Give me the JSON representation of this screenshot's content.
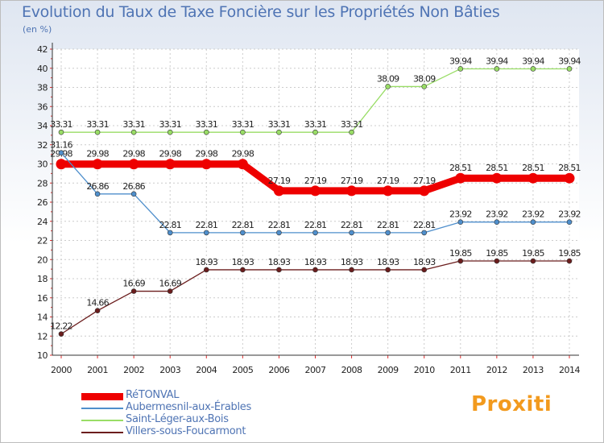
{
  "page": {
    "unit_label": "(en %)",
    "brand": "Proxiti"
  },
  "chart_data": {
    "type": "line",
    "title": "Evolution du Taux de Taxe Foncière sur les Propriétés Non Bâties",
    "ylabel": "(en %)",
    "xlabel": "",
    "ylim": [
      10,
      42
    ],
    "y_ticks": [
      10,
      12,
      14,
      16,
      18,
      20,
      22,
      24,
      26,
      28,
      30,
      32,
      34,
      36,
      38,
      40,
      42
    ],
    "categories": [
      "2000",
      "2001",
      "2002",
      "2003",
      "2004",
      "2005",
      "2006",
      "2007",
      "2008",
      "2009",
      "2010",
      "2011",
      "2012",
      "2013",
      "2014"
    ],
    "grid": true,
    "legend_position": "bottom-left",
    "series": [
      {
        "name": "RéTONVAL",
        "color": "#ee0000",
        "values": [
          29.98,
          29.98,
          29.98,
          29.98,
          29.98,
          29.98,
          27.19,
          27.19,
          27.19,
          27.19,
          27.19,
          28.51,
          28.51,
          28.51,
          28.51
        ],
        "labels": [
          "29.98",
          "29.98",
          "29.98",
          "29.98",
          "29.98",
          "29.98",
          "27.19",
          "27.19",
          "27.19",
          "27.19",
          "27.19",
          "28.51",
          "28.51",
          "28.51",
          "28.51"
        ]
      },
      {
        "name": "Aubermesnil-aux-Érables",
        "color": "#4f8fcc",
        "values": [
          31.16,
          26.86,
          26.86,
          22.81,
          22.81,
          22.81,
          22.81,
          22.81,
          22.81,
          22.81,
          22.81,
          23.92,
          23.92,
          23.92,
          23.92
        ],
        "labels": [
          "31.16",
          "26.86",
          "26.86",
          "22.81",
          "22.81",
          "22.81",
          "22.81",
          "22.81",
          "22.81",
          "22.81",
          "22.81",
          "23.92",
          "23.92",
          "23.92",
          "23.92"
        ]
      },
      {
        "name": "Saint-Léger-aux-Bois",
        "color": "#99dd66",
        "values": [
          33.31,
          33.31,
          33.31,
          33.31,
          33.31,
          33.31,
          33.31,
          33.31,
          33.31,
          38.09,
          38.09,
          39.94,
          39.94,
          39.94,
          39.94
        ],
        "labels": [
          "33.31",
          "33.31",
          "33.31",
          "33.31",
          "33.31",
          "33.31",
          "33.31",
          "33.31",
          "33.31",
          "38.09",
          "38.09",
          "39.94",
          "39.94",
          "39.94",
          "39.94"
        ]
      },
      {
        "name": "Villers-sous-Foucarmont",
        "color": "#6b1d1d",
        "values": [
          12.22,
          14.66,
          16.69,
          16.69,
          18.93,
          18.93,
          18.93,
          18.93,
          18.93,
          18.93,
          18.93,
          19.85,
          19.85,
          19.85,
          19.85
        ],
        "labels": [
          "12.22",
          "14.66",
          "16.69",
          "16.69",
          "18.93",
          "18.93",
          "18.93",
          "18.93",
          "18.93",
          "18.93",
          "18.93",
          "19.85",
          "19.85",
          "19.85",
          "19.85"
        ]
      }
    ]
  }
}
